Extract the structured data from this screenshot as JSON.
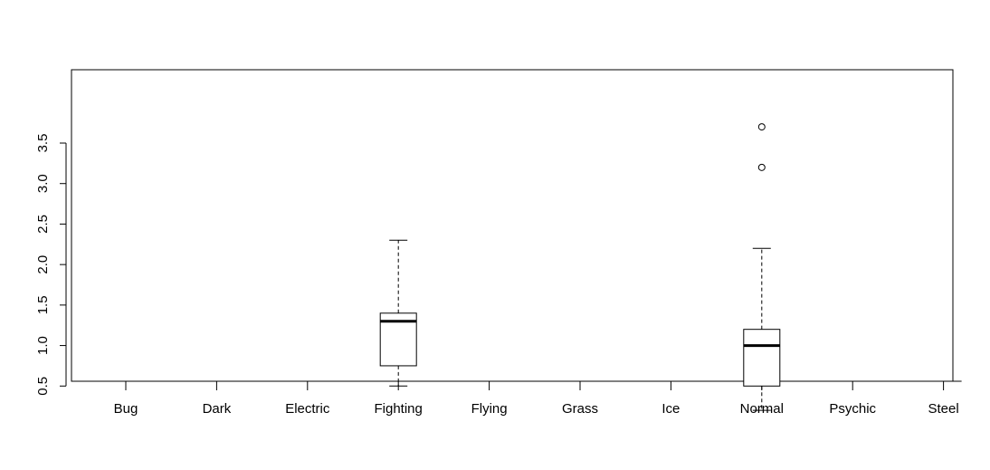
{
  "chart_data": {
    "type": "boxplot",
    "title": "",
    "xlabel": "",
    "ylabel": "",
    "ylim": [
      0.0,
      3.85
    ],
    "grid": false,
    "categories": [
      "Bug",
      "Dark",
      "Electric",
      "Fighting",
      "Flying",
      "Grass",
      "Ice",
      "Normal",
      "Psychic",
      "Steel"
    ],
    "y_ticks": [
      "0.5",
      "1.0",
      "1.5",
      "2.0",
      "2.5",
      "3.0",
      "3.5"
    ],
    "boxes": [
      {
        "category": "Bug",
        "min": 0.0,
        "q1": 0.0,
        "median": 0.0,
        "q3": 0.0,
        "max": 0.0,
        "outliers": []
      },
      {
        "category": "Dark",
        "min": 0.0,
        "q1": 0.0,
        "median": 0.0,
        "q3": 0.0,
        "max": 0.0,
        "outliers": []
      },
      {
        "category": "Electric",
        "min": 0.0,
        "q1": 0.0,
        "median": 0.0,
        "q3": 0.0,
        "max": 0.0,
        "outliers": []
      },
      {
        "category": "Fighting",
        "min": 0.5,
        "q1": 0.75,
        "median": 1.3,
        "q3": 1.4,
        "max": 2.3,
        "outliers": []
      },
      {
        "category": "Flying",
        "min": 0.0,
        "q1": 0.0,
        "median": 0.0,
        "q3": 0.0,
        "max": 0.0,
        "outliers": []
      },
      {
        "category": "Grass",
        "min": 0.0,
        "q1": 0.0,
        "median": 0.0,
        "q3": 0.0,
        "max": 0.0,
        "outliers": []
      },
      {
        "category": "Ice",
        "min": 0.0,
        "q1": 0.0,
        "median": 0.0,
        "q3": 0.0,
        "max": 0.0,
        "outliers": []
      },
      {
        "category": "Normal",
        "min": 0.2,
        "q1": 0.5,
        "median": 1.0,
        "q3": 1.2,
        "max": 2.2,
        "outliers": [
          3.2,
          3.7
        ]
      },
      {
        "category": "Psychic",
        "min": 0.0,
        "q1": 0.0,
        "median": 0.0,
        "q3": 0.0,
        "max": 0.0,
        "outliers": []
      },
      {
        "category": "Steel",
        "min": 0.0,
        "q1": 0.0,
        "median": 0.0,
        "q3": 0.0,
        "max": 0.0,
        "outliers": []
      }
    ]
  }
}
